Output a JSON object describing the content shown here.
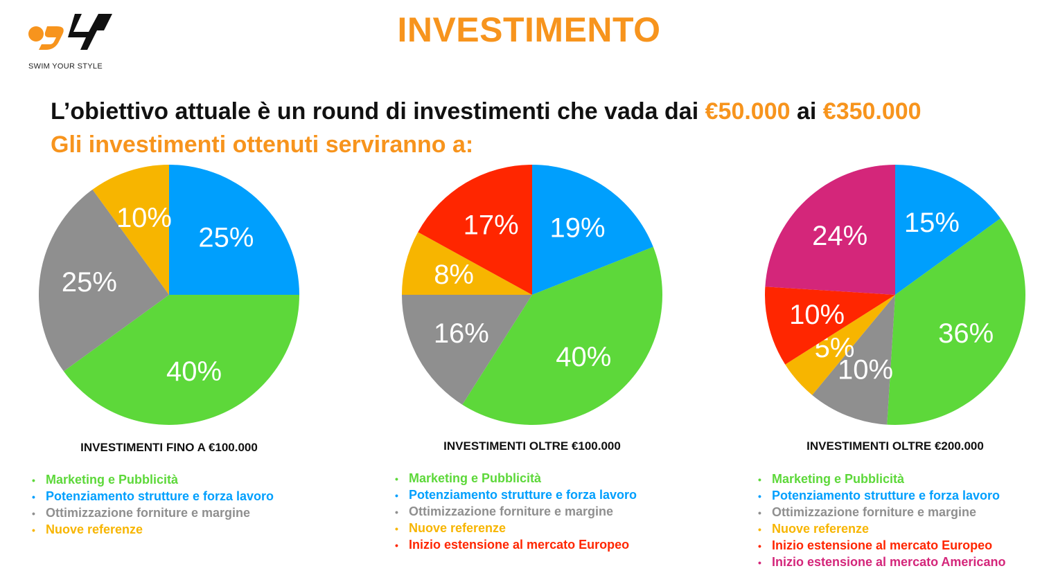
{
  "logo": {
    "mark": "S4Y",
    "tagline": "SWIM YOUR STYLE"
  },
  "title": "INVESTIMENTO",
  "headline": {
    "prefix": "L’obiettivo attuale è un round di investimenti che vada dai ",
    "amount_from": "€50.000",
    "middle": " ai ",
    "amount_to": "€350.000"
  },
  "subline": "Gli investimenti ottenuti serviranno a:",
  "colors": {
    "blue": "#009ffd",
    "green": "#5dd83a",
    "gray": "#8f8f8f",
    "yellow": "#f7b500",
    "red": "#ff2600",
    "magenta": "#d4267a",
    "orange": "#f7941d"
  },
  "chart_data": [
    {
      "type": "pie",
      "title": "INVESTIMENTI FINO A €100.000",
      "slices": [
        {
          "label": "25%",
          "value": 25,
          "color": "#009ffd",
          "legend": "Potenziamento strutture e forza lavoro"
        },
        {
          "label": "40%",
          "value": 40,
          "color": "#5dd83a",
          "legend": "Marketing e Pubblicità"
        },
        {
          "label": "25%",
          "value": 25,
          "color": "#8f8f8f",
          "legend": "Ottimizzazione forniture e margine"
        },
        {
          "label": "10%",
          "value": 10,
          "color": "#f7b500",
          "legend": "Nuove referenze"
        }
      ],
      "legend_order": [
        1,
        0,
        2,
        3
      ]
    },
    {
      "type": "pie",
      "title": "INVESTIMENTI OLTRE €100.000",
      "slices": [
        {
          "label": "19%",
          "value": 19,
          "color": "#009ffd",
          "legend": "Potenziamento strutture e forza lavoro"
        },
        {
          "label": "40%",
          "value": 40,
          "color": "#5dd83a",
          "legend": "Marketing e Pubblicità"
        },
        {
          "label": "16%",
          "value": 16,
          "color": "#8f8f8f",
          "legend": "Ottimizzazione forniture e margine"
        },
        {
          "label": "8%",
          "value": 8,
          "color": "#f7b500",
          "legend": "Nuove referenze"
        },
        {
          "label": "17%",
          "value": 17,
          "color": "#ff2600",
          "legend": "Inizio estensione al mercato Europeo"
        }
      ],
      "legend_order": [
        1,
        0,
        2,
        3,
        4
      ]
    },
    {
      "type": "pie",
      "title": "INVESTIMENTI OLTRE €200.000",
      "slices": [
        {
          "label": "15%",
          "value": 15,
          "color": "#009ffd",
          "legend": "Potenziamento strutture e forza lavoro"
        },
        {
          "label": "36%",
          "value": 36,
          "color": "#5dd83a",
          "legend": "Marketing e Pubblicità"
        },
        {
          "label": "10%",
          "value": 10,
          "color": "#8f8f8f",
          "legend": "Ottimizzazione forniture e margine"
        },
        {
          "label": "5%",
          "value": 5,
          "color": "#f7b500",
          "legend": "Nuove referenze"
        },
        {
          "label": "10%",
          "value": 10,
          "color": "#ff2600",
          "legend": "Inizio estensione al mercato Europeo"
        },
        {
          "label": "24%",
          "value": 24,
          "color": "#d4267a",
          "legend": "Inizio estensione al mercato Americano"
        }
      ],
      "legend_order": [
        1,
        0,
        2,
        3,
        4,
        5
      ]
    }
  ]
}
